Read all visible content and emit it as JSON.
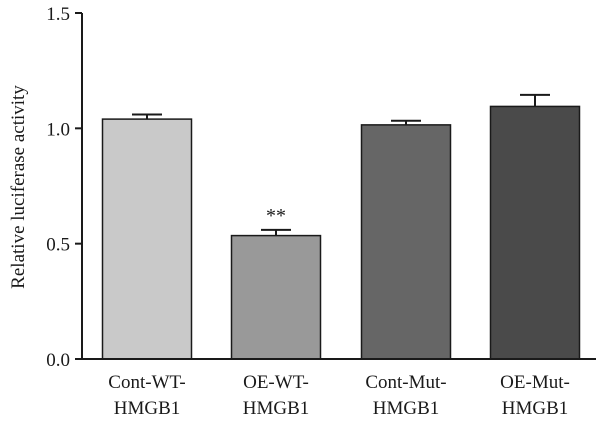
{
  "chart_data": {
    "type": "bar",
    "title": "",
    "xlabel": "",
    "ylabel": "Relative luciferase activity",
    "ylim": [
      0,
      1.5
    ],
    "yticks": [
      "0.0",
      "0.5",
      "1.0",
      "1.5"
    ],
    "grid": false,
    "categories": [
      [
        "Cont-WT-",
        "HMGB1"
      ],
      [
        "OE-WT-",
        "HMGB1"
      ],
      [
        "Cont-Mut-",
        "HMGB1"
      ],
      [
        "OE-Mut-",
        "HMGB1"
      ]
    ],
    "values": [
      1.04,
      0.535,
      1.015,
      1.095
    ],
    "errors": [
      0.02,
      0.025,
      0.018,
      0.05
    ],
    "colors": [
      "#c9c9c9",
      "#999999",
      "#666666",
      "#4a4a4a"
    ],
    "annotations": [
      {
        "category_index": 1,
        "text": "**"
      }
    ]
  }
}
